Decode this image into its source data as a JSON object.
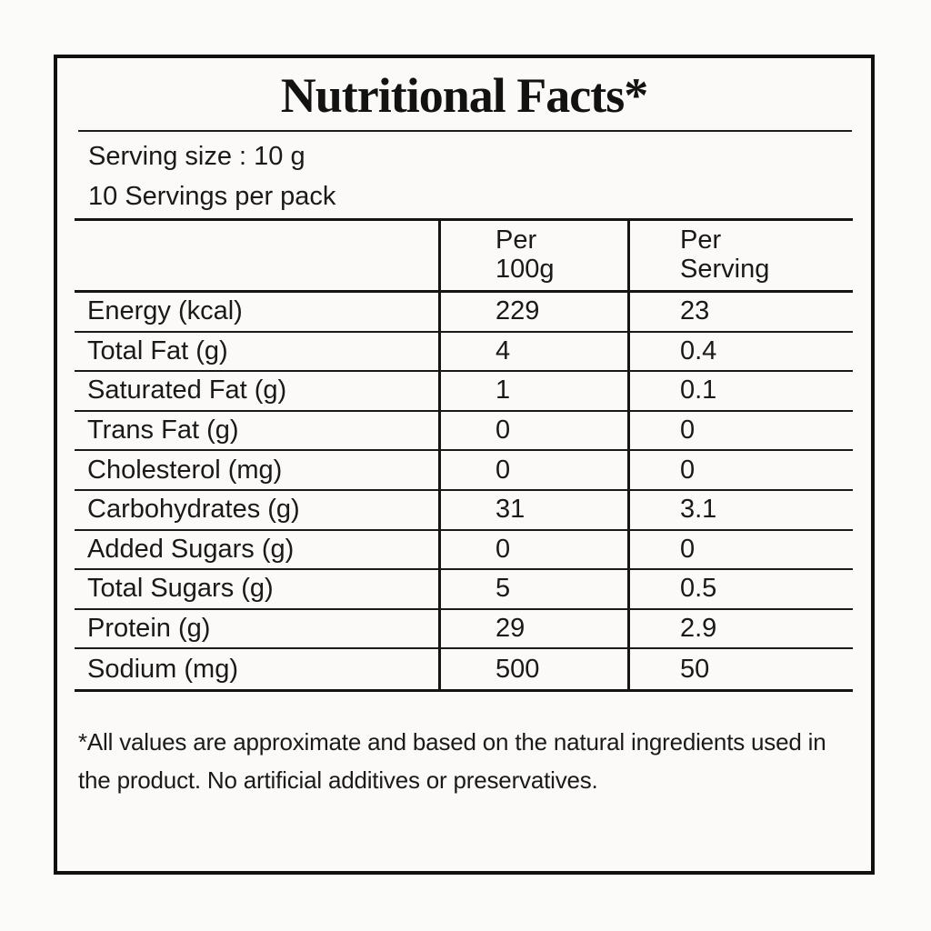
{
  "label": {
    "title": "Nutritional Facts*",
    "serving_size": "Serving size : 10 g",
    "servings_per_pack": "10 Servings per pack",
    "columns": {
      "per_100g": "Per\n100g",
      "per_serving": "Per\nServing"
    },
    "rows": [
      {
        "nutrient": "Energy (kcal)",
        "per_100g": "229",
        "per_serving": "23"
      },
      {
        "nutrient": "Total Fat (g)",
        "per_100g": "4",
        "per_serving": "0.4"
      },
      {
        "nutrient": "Saturated Fat (g)",
        "per_100g": "1",
        "per_serving": "0.1"
      },
      {
        "nutrient": "Trans Fat (g)",
        "per_100g": "0",
        "per_serving": "0"
      },
      {
        "nutrient": "Cholesterol (mg)",
        "per_100g": "0",
        "per_serving": "0"
      },
      {
        "nutrient": "Carbohydrates (g)",
        "per_100g": "31",
        "per_serving": "3.1"
      },
      {
        "nutrient": "Added Sugars (g)",
        "per_100g": "0",
        "per_serving": "0"
      },
      {
        "nutrient": "Total Sugars (g)",
        "per_100g": "5",
        "per_serving": "0.5"
      },
      {
        "nutrient": "Protein (g)",
        "per_100g": "29",
        "per_serving": "2.9"
      },
      {
        "nutrient": "Sodium (mg)",
        "per_100g": "500",
        "per_serving": "50"
      }
    ],
    "footnote": "*All values are approximate and based on the natural ingredients used in the product. No artificial additives or preservatives.",
    "colors": {
      "background": "#fbfaf8",
      "text": "#191919",
      "border": "#101010"
    }
  }
}
